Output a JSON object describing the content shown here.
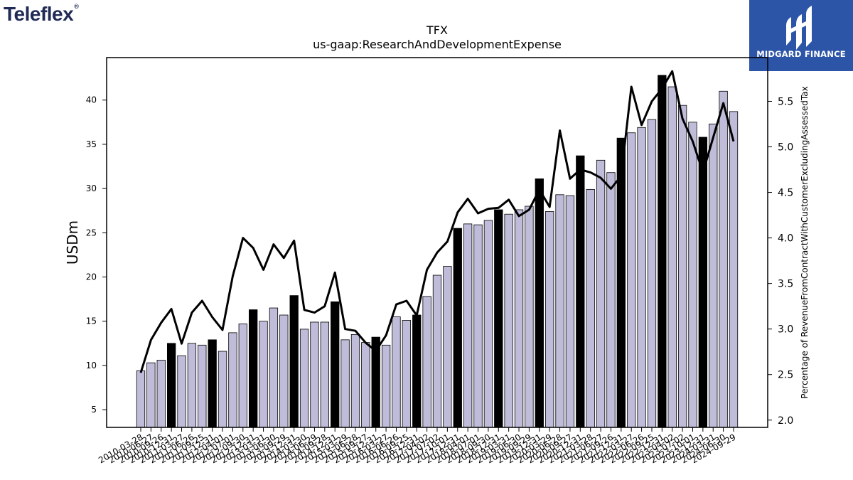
{
  "brand": {
    "logo_text": "Teleflex",
    "logo_mark": "®"
  },
  "partner": {
    "name": "MIDGARD FINANCE"
  },
  "chart_data": {
    "type": "bar",
    "title": "TFX",
    "subtitle": "us-gaap:ResearchAndDevelopmentExpense",
    "ylabel": "USDm",
    "y2label": "Percentage of RevenueFromContractWithCustomerExcludingAssessedTax",
    "ylim": [
      3,
      44.8
    ],
    "y2lim": [
      1.92,
      5.98
    ],
    "yticks": [
      5,
      10,
      15,
      20,
      25,
      30,
      35,
      40
    ],
    "y2ticks": [
      2.0,
      2.5,
      3.0,
      3.5,
      4.0,
      4.5,
      5.0,
      5.5
    ],
    "y2tick_labels": [
      "2.0",
      "2.5",
      "3.0",
      "3.5",
      "4.0",
      "4.5",
      "5.0",
      "5.5"
    ],
    "colors": {
      "bar": "#bfbcda",
      "bar_highlight": "#000000",
      "line": "#000000"
    },
    "categories": [
      "2010-03-28",
      "2010-06-27",
      "2010-09-26",
      "2010-12-31",
      "2011-03-27",
      "2011-06-26",
      "2011-09-25",
      "2011-12-31",
      "2012-04-01",
      "2012-07-01",
      "2012-09-30",
      "2012-12-31",
      "2013-03-31",
      "2013-06-30",
      "2013-09-29",
      "2013-12-31",
      "2014-03-30",
      "2014-06-29",
      "2014-09-28",
      "2014-12-31",
      "2015-03-29",
      "2015-06-28",
      "2015-09-27",
      "2015-12-31",
      "2016-03-27",
      "2016-06-26",
      "2016-09-25",
      "2016-12-31",
      "2017-04-02",
      "2017-07-02",
      "2017-10-01",
      "2017-12-31",
      "2018-04-01",
      "2018-07-01",
      "2018-09-30",
      "2018-12-31",
      "2019-03-31",
      "2019-06-30",
      "2019-09-29",
      "2019-12-31",
      "2020-03-29",
      "2020-06-28",
      "2020-09-27",
      "2020-12-31",
      "2021-03-28",
      "2021-06-27",
      "2021-09-26",
      "2021-12-31",
      "2022-03-27",
      "2022-06-26",
      "2022-09-25",
      "2022-12-31",
      "2023-04-02",
      "2023-07-02",
      "2023-10-01",
      "2023-12-31",
      "2024-03-31",
      "2024-06-30",
      "2024-09-29"
    ],
    "visible_tick_labels": [
      "2010-03-28",
      "2010-06-27",
      "2010-09-26",
      "2010-12-31",
      "2011-03-27",
      "2011-06-26",
      "2011-09-25",
      "2011-12-31",
      "2012-04-01",
      "2012-07-01",
      "2012-09-30",
      "2012-12-31",
      "2013-03-31",
      "2013-06-30",
      "2013-09-29",
      "2013-12-31",
      "2014-03-30",
      "2014-06-29",
      "2014-09-28",
      "2014-12-31",
      "2015-03-29",
      "2015-06-28",
      "2015-09-27",
      "2015-12-31",
      "2016-03-27",
      "2016-06-26",
      "2016-09-25",
      "2016-12-31",
      "2017-04-02",
      "2017-07-02",
      "2017-10-01",
      "2017-12-31",
      "2018-04-01",
      "2018-07-01",
      "2018-09-30",
      "2018-12-31",
      "2019-03-31",
      "2019-06-30",
      "2019-09-29",
      "2019-12-31",
      "2020-03-29",
      "2020-06-28",
      "2020-09-27",
      "2020-12-31",
      "2021-03-28",
      "2021-06-27",
      "2021-09-26",
      "2021-12-31",
      "2022-03-27",
      "2022-06-26",
      "2022-09-25",
      "2022-12-31",
      "2023-04-02",
      "2023-07-02",
      "2023-10-01",
      "2023-12-31",
      "2024-03-31",
      "2024-06-30",
      "2024-09-29"
    ],
    "highlight": [
      false,
      false,
      false,
      true,
      false,
      false,
      false,
      true,
      false,
      false,
      false,
      true,
      false,
      false,
      false,
      true,
      false,
      false,
      false,
      true,
      false,
      false,
      false,
      true,
      false,
      false,
      false,
      true,
      false,
      false,
      false,
      true,
      false,
      false,
      false,
      true,
      false,
      false,
      false,
      true,
      false,
      false,
      false,
      true,
      false,
      false,
      false,
      true,
      false,
      false,
      false,
      true,
      false,
      false,
      false,
      true,
      false,
      false,
      false
    ],
    "series": [
      {
        "name": "USDm",
        "kind": "bar",
        "axis": "left",
        "values": [
          9.4,
          10.3,
          10.6,
          12.5,
          11.1,
          12.5,
          12.3,
          12.9,
          11.6,
          13.7,
          14.7,
          16.3,
          15.0,
          16.5,
          15.7,
          17.9,
          14.1,
          14.9,
          14.9,
          17.2,
          12.9,
          13.5,
          12.6,
          13.2,
          12.3,
          15.5,
          15.1,
          15.7,
          17.8,
          20.2,
          21.2,
          25.5,
          26.0,
          25.9,
          26.4,
          27.6,
          27.1,
          27.6,
          28.0,
          31.1,
          27.4,
          29.3,
          29.2,
          33.7,
          29.9,
          33.2,
          31.8,
          35.7,
          36.3,
          36.9,
          37.8,
          42.8,
          41.5,
          39.4,
          37.5,
          35.8,
          37.3,
          41.0,
          38.7
        ]
      },
      {
        "name": "Percentage of RevenueFromContractWithCustomerExcludingAssessedTax",
        "kind": "line",
        "axis": "right",
        "values": [
          2.52,
          2.88,
          3.07,
          3.22,
          2.84,
          3.18,
          3.31,
          3.13,
          2.99,
          3.58,
          4.0,
          3.89,
          3.65,
          3.93,
          3.78,
          3.97,
          3.21,
          3.18,
          3.25,
          3.62,
          3.0,
          2.98,
          2.85,
          2.76,
          2.93,
          3.27,
          3.31,
          3.15,
          3.65,
          3.84,
          3.96,
          4.28,
          4.43,
          4.27,
          4.32,
          4.33,
          4.42,
          4.24,
          4.31,
          4.53,
          4.34,
          5.18,
          4.65,
          4.75,
          4.72,
          4.66,
          4.54,
          4.68,
          5.66,
          5.24,
          5.5,
          5.64,
          5.83,
          5.31,
          5.06,
          4.72,
          5.1,
          5.48,
          5.06
        ]
      }
    ],
    "grid": false,
    "legend": "none"
  }
}
